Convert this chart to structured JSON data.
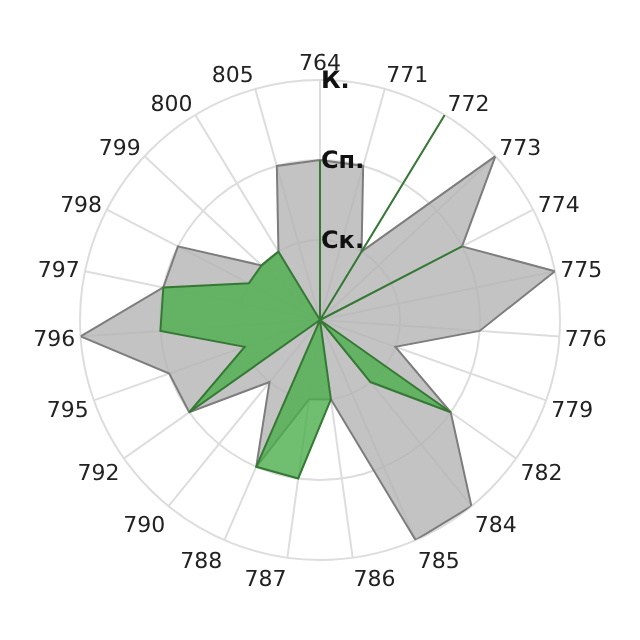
{
  "chart_data": {
    "type": "radar",
    "categories": [
      "764",
      "771",
      "772",
      "773",
      "774",
      "775",
      "776",
      "779",
      "782",
      "784",
      "785",
      "786",
      "787",
      "788",
      "790",
      "792",
      "795",
      "796",
      "797",
      "798",
      "799",
      "800",
      "805"
    ],
    "series": [
      {
        "color": "#b4b4b4",
        "values": [
          2,
          2,
          1,
          3,
          2,
          3,
          2,
          1,
          2,
          3,
          3,
          1,
          1,
          2,
          1,
          2,
          2,
          3,
          2,
          2,
          1,
          1,
          2
        ]
      },
      {
        "color": "#4cae4c",
        "values": [
          2,
          0,
          3,
          0,
          2,
          0,
          0,
          0,
          2,
          1,
          0,
          1,
          2,
          2,
          0,
          2,
          1,
          2,
          2,
          1,
          1,
          1,
          0
        ]
      }
    ],
    "ylim": [
      0,
      3
    ],
    "yticks": [
      {
        "value": 1,
        "label": "Ск."
      },
      {
        "value": 2,
        "label": "Сп."
      },
      {
        "value": 3,
        "label": "К."
      }
    ],
    "grid": true
  }
}
